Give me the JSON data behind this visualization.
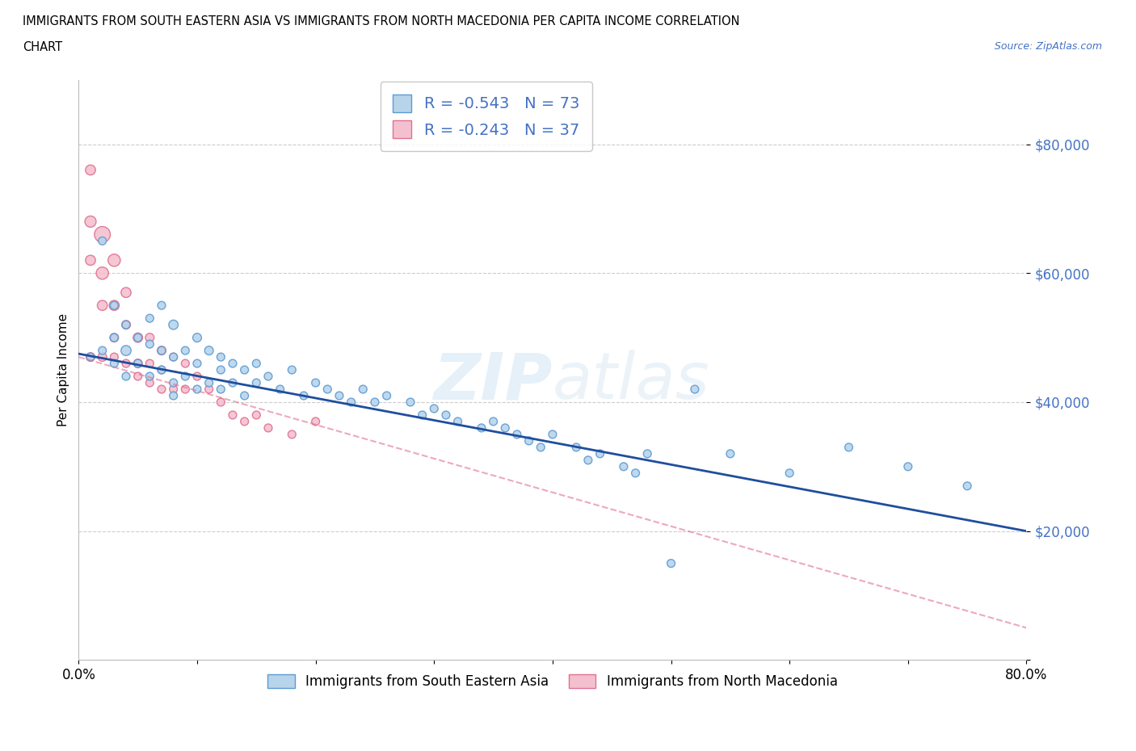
{
  "title_line1": "IMMIGRANTS FROM SOUTH EASTERN ASIA VS IMMIGRANTS FROM NORTH MACEDONIA PER CAPITA INCOME CORRELATION",
  "title_line2": "CHART",
  "source": "Source: ZipAtlas.com",
  "ylabel": "Per Capita Income",
  "xmin": 0.0,
  "xmax": 0.8,
  "ymin": 0,
  "ymax": 90000,
  "yticks": [
    0,
    20000,
    40000,
    60000,
    80000
  ],
  "ytick_labels": [
    "",
    "$20,000",
    "$40,000",
    "$60,000",
    "$80,000"
  ],
  "xticks": [
    0.0,
    0.1,
    0.2,
    0.3,
    0.4,
    0.5,
    0.6,
    0.7,
    0.8
  ],
  "xtick_labels": [
    "0.0%",
    "",
    "",
    "",
    "",
    "",
    "",
    "",
    "80.0%"
  ],
  "series1_color": "#b8d4ea",
  "series1_edge": "#5b9bd5",
  "series2_color": "#f4c0d0",
  "series2_edge": "#e07090",
  "trendline1_color": "#1f4e9e",
  "trendline2_color": "#e07090",
  "legend_label1": "Immigrants from South Eastern Asia",
  "legend_label2": "Immigrants from North Macedonia",
  "R1": "-0.543",
  "N1": "73",
  "R2": "-0.243",
  "N2": "37",
  "watermark": "ZIPatlas",
  "grid_color": "#cccccc",
  "series1_x": [
    0.01,
    0.02,
    0.02,
    0.03,
    0.03,
    0.03,
    0.04,
    0.04,
    0.04,
    0.05,
    0.05,
    0.06,
    0.06,
    0.06,
    0.07,
    0.07,
    0.07,
    0.08,
    0.08,
    0.08,
    0.08,
    0.09,
    0.09,
    0.1,
    0.1,
    0.1,
    0.11,
    0.11,
    0.12,
    0.12,
    0.12,
    0.13,
    0.13,
    0.14,
    0.14,
    0.15,
    0.15,
    0.16,
    0.17,
    0.18,
    0.19,
    0.2,
    0.21,
    0.22,
    0.23,
    0.24,
    0.25,
    0.26,
    0.28,
    0.29,
    0.3,
    0.31,
    0.32,
    0.34,
    0.35,
    0.36,
    0.37,
    0.38,
    0.39,
    0.4,
    0.42,
    0.43,
    0.44,
    0.46,
    0.47,
    0.48,
    0.5,
    0.52,
    0.55,
    0.6,
    0.65,
    0.7,
    0.75
  ],
  "series1_y": [
    47000,
    65000,
    48000,
    55000,
    50000,
    46000,
    52000,
    48000,
    44000,
    50000,
    46000,
    53000,
    49000,
    44000,
    55000,
    48000,
    45000,
    52000,
    47000,
    43000,
    41000,
    48000,
    44000,
    50000,
    46000,
    42000,
    48000,
    43000,
    47000,
    45000,
    42000,
    46000,
    43000,
    45000,
    41000,
    46000,
    43000,
    44000,
    42000,
    45000,
    41000,
    43000,
    42000,
    41000,
    40000,
    42000,
    40000,
    41000,
    40000,
    38000,
    39000,
    38000,
    37000,
    36000,
    37000,
    36000,
    35000,
    34000,
    33000,
    35000,
    33000,
    31000,
    32000,
    30000,
    29000,
    32000,
    15000,
    42000,
    32000,
    29000,
    33000,
    30000,
    27000
  ],
  "series1_size": [
    50,
    50,
    50,
    50,
    50,
    50,
    50,
    80,
    50,
    50,
    50,
    50,
    50,
    50,
    50,
    50,
    50,
    70,
    50,
    50,
    50,
    50,
    50,
    60,
    50,
    50,
    60,
    50,
    50,
    50,
    50,
    50,
    50,
    50,
    50,
    50,
    50,
    50,
    50,
    50,
    50,
    50,
    50,
    50,
    50,
    50,
    50,
    50,
    50,
    50,
    50,
    50,
    50,
    50,
    50,
    50,
    50,
    50,
    50,
    50,
    50,
    50,
    50,
    50,
    50,
    50,
    50,
    50,
    50,
    50,
    50,
    50,
    50
  ],
  "series2_x": [
    0.01,
    0.01,
    0.01,
    0.01,
    0.02,
    0.02,
    0.02,
    0.02,
    0.03,
    0.03,
    0.03,
    0.03,
    0.04,
    0.04,
    0.04,
    0.05,
    0.05,
    0.05,
    0.06,
    0.06,
    0.06,
    0.07,
    0.07,
    0.07,
    0.08,
    0.08,
    0.09,
    0.09,
    0.1,
    0.11,
    0.12,
    0.13,
    0.14,
    0.15,
    0.16,
    0.18,
    0.2
  ],
  "series2_y": [
    76000,
    68000,
    62000,
    47000,
    66000,
    60000,
    55000,
    47000,
    62000,
    55000,
    50000,
    47000,
    57000,
    52000,
    46000,
    50000,
    46000,
    44000,
    50000,
    46000,
    43000,
    48000,
    45000,
    42000,
    47000,
    42000,
    46000,
    42000,
    44000,
    42000,
    40000,
    38000,
    37000,
    38000,
    36000,
    35000,
    37000
  ],
  "series2_size": [
    80,
    100,
    80,
    60,
    200,
    120,
    80,
    60,
    120,
    80,
    60,
    50,
    80,
    60,
    50,
    70,
    60,
    50,
    60,
    50,
    50,
    60,
    50,
    50,
    50,
    50,
    50,
    50,
    50,
    50,
    50,
    50,
    50,
    50,
    50,
    50,
    50
  ],
  "trendline1_x0": 0.0,
  "trendline1_x1": 0.8,
  "trendline1_y0": 47500,
  "trendline1_y1": 20000,
  "trendline2_x0": 0.0,
  "trendline2_x1": 0.8,
  "trendline2_y0": 47000,
  "trendline2_y1": 5000
}
